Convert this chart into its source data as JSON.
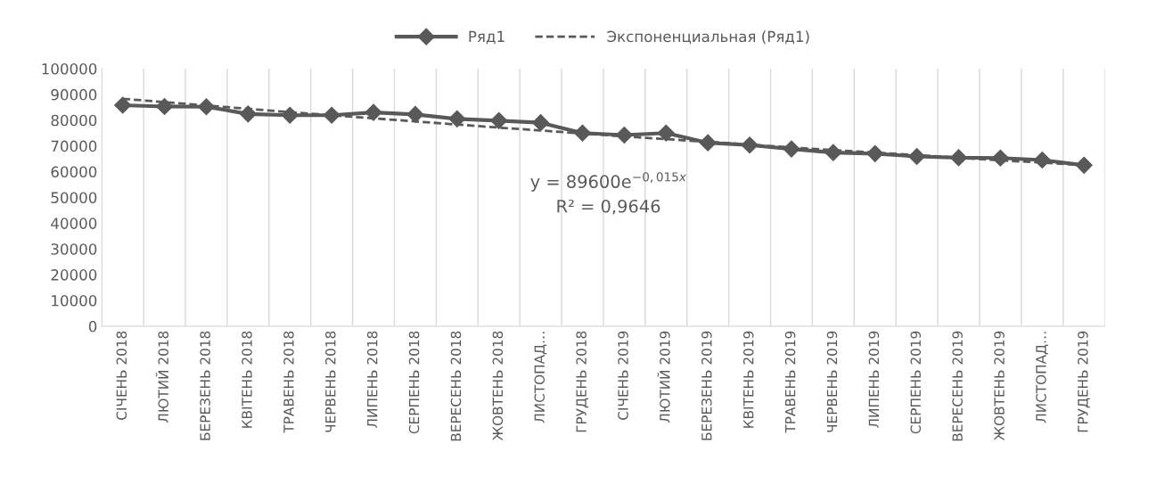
{
  "chart_data": {
    "type": "line",
    "categories": [
      "СІЧЕНЬ 2018",
      "ЛЮТИЙ 2018",
      "БЕРЕЗЕНЬ 2018",
      "КВІТЕНЬ 2018",
      "ТРАВЕНЬ 2018",
      "ЧЕРВЕНЬ 2018",
      "ЛИПЕНЬ 2018",
      "СЕРПЕНЬ 2018",
      "ВЕРЕСЕНЬ 2018",
      "ЖОВТЕНЬ 2018",
      "ЛИСТОПАД…",
      "ГРУДЕНЬ 2018",
      "СІЧЕНЬ 2019",
      "ЛЮТИЙ 2019",
      "БЕРЕЗЕНЬ 2019",
      "КВІТЕНЬ 2019",
      "ТРАВЕНЬ 2019",
      "ЧЕРВЕНЬ 2019",
      "ЛИПЕНЬ 2019",
      "СЕРПЕНЬ 2019",
      "ВЕРЕСЕНЬ 2019",
      "ЖОВТЕНЬ 2019",
      "ЛИСТОПАД…",
      "ГРУДЕНЬ 2019"
    ],
    "series": [
      {
        "name": "Ряд1",
        "color": "#595959",
        "marker": "diamond",
        "line_style": "solid",
        "values": [
          85800,
          85300,
          85200,
          82400,
          81900,
          81900,
          83000,
          82200,
          80500,
          79800,
          79000,
          75000,
          74200,
          75000,
          71200,
          70300,
          68800,
          67400,
          67000,
          65900,
          65400,
          65300,
          64500,
          62500
        ]
      },
      {
        "name": "Экспоненциальная (Ряд1)",
        "color": "#595959",
        "marker": "none",
        "line_style": "dashed",
        "values": [
          88300,
          87000,
          85700,
          84400,
          83100,
          81900,
          80700,
          79500,
          78300,
          77100,
          76000,
          74800,
          73700,
          72600,
          71600,
          70500,
          69400,
          68400,
          67400,
          66400,
          65400,
          64400,
          63500,
          62500
        ]
      }
    ],
    "ylim": [
      0,
      100000
    ],
    "yticks": [
      0,
      10000,
      20000,
      30000,
      40000,
      50000,
      60000,
      70000,
      80000,
      90000,
      100000
    ],
    "grid": "x",
    "legend": "top",
    "annotations": [
      "y = 89600e$^{−0,015x}$",
      "R² = 0,9646"
    ]
  }
}
